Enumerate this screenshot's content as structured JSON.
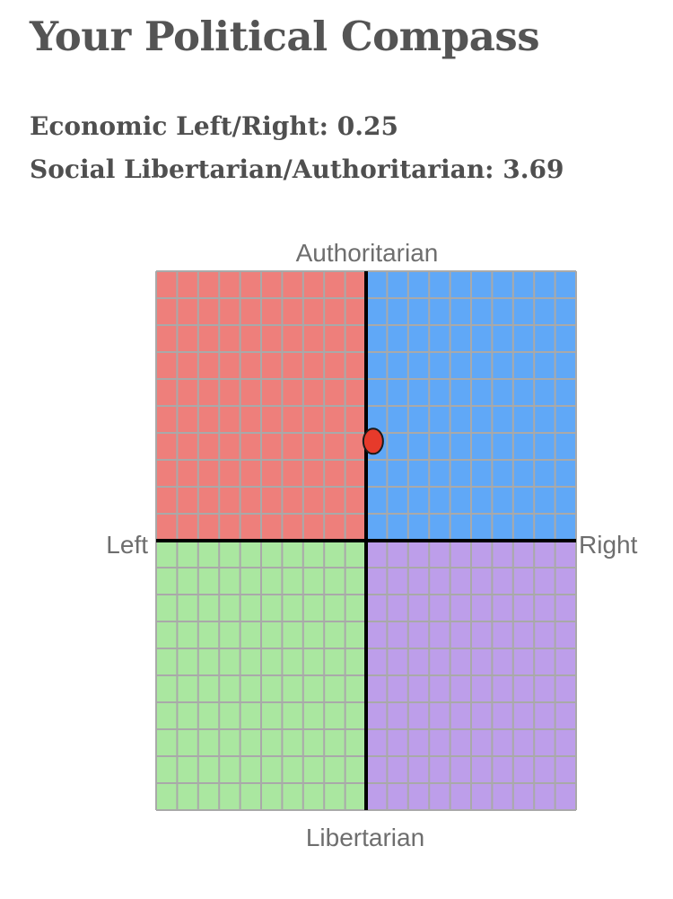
{
  "page": {
    "title": "Your Political Compass"
  },
  "scores": {
    "economic_text": "Economic Left/Right: 0.25",
    "social_text": "Social Libertarian/Authoritarian: 3.69"
  },
  "chart_data": {
    "type": "scatter",
    "title": "",
    "xlabel_left": "Left",
    "xlabel_right": "Right",
    "ylabel_top": "Authoritarian",
    "ylabel_bottom": "Libertarian",
    "xlim": [
      -10,
      10
    ],
    "ylim": [
      -10,
      10
    ],
    "grid": true,
    "grid_divisions": 20,
    "quadrant_colors": {
      "authoritarian_left": "#ee7f7b",
      "authoritarian_right": "#60a8f7",
      "libertarian_left": "#aae7a0",
      "libertarian_right": "#bd9eea"
    },
    "grid_color": "#a9a9a9",
    "axis_color": "#000000",
    "point_color": "#e63a2b",
    "points": [
      {
        "x": 0.25,
        "y": 3.69
      }
    ]
  }
}
